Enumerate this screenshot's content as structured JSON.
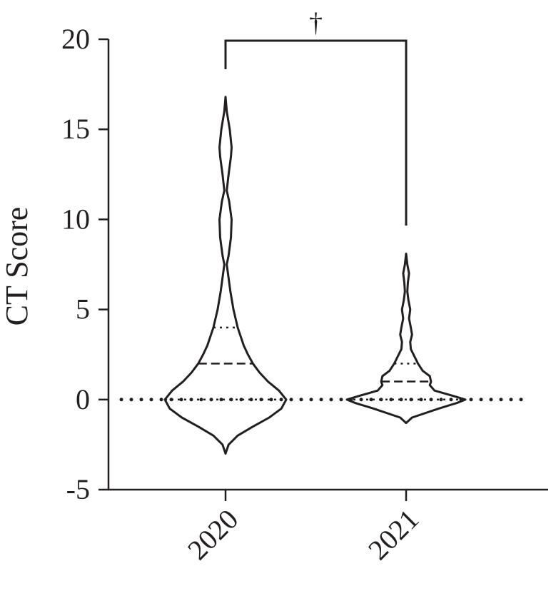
{
  "chart_data": {
    "type": "violin",
    "title": "",
    "xlabel": "",
    "ylabel": "CT Score",
    "ylim": [
      -5,
      20
    ],
    "yticks": [
      "-5",
      "0",
      "5",
      "10",
      "15",
      "20"
    ],
    "categories": [
      "2020",
      "2021"
    ],
    "grid": false,
    "legend": "none",
    "reference_line_y": 0,
    "significance": {
      "between": [
        "2020",
        "2021"
      ],
      "label": "†"
    },
    "series": [
      {
        "category": "2020",
        "min": -3,
        "max": 16.8,
        "median": 2,
        "q1": 0,
        "q3": 4,
        "density_profile": [
          [
            -3.0,
            0.0
          ],
          [
            -2.5,
            0.05
          ],
          [
            -2.0,
            0.2
          ],
          [
            -1.5,
            0.45
          ],
          [
            -1.0,
            0.72
          ],
          [
            -0.5,
            0.92
          ],
          [
            0.0,
            1.0
          ],
          [
            0.5,
            0.88
          ],
          [
            1.0,
            0.7
          ],
          [
            1.5,
            0.56
          ],
          [
            2.0,
            0.45
          ],
          [
            2.5,
            0.37
          ],
          [
            3.0,
            0.3
          ],
          [
            4.0,
            0.2
          ],
          [
            5.0,
            0.13
          ],
          [
            6.0,
            0.08
          ],
          [
            7.0,
            0.04
          ],
          [
            7.5,
            0.02
          ],
          [
            8.0,
            0.05
          ],
          [
            9.0,
            0.09
          ],
          [
            10.0,
            0.1
          ],
          [
            11.0,
            0.06
          ],
          [
            11.6,
            0.02
          ],
          [
            12.5,
            0.05
          ],
          [
            13.5,
            0.09
          ],
          [
            14.0,
            0.1
          ],
          [
            15.0,
            0.07
          ],
          [
            16.0,
            0.02
          ],
          [
            16.8,
            0.0
          ]
        ]
      },
      {
        "category": "2021",
        "min": -1.3,
        "max": 8.1,
        "median": 1,
        "q1": 0,
        "q3": 2,
        "density_profile": [
          [
            -1.3,
            0.0
          ],
          [
            -1.0,
            0.1
          ],
          [
            -0.5,
            0.55
          ],
          [
            -0.2,
            0.85
          ],
          [
            0.0,
            1.0
          ],
          [
            0.2,
            0.8
          ],
          [
            0.5,
            0.48
          ],
          [
            0.8,
            0.4
          ],
          [
            1.0,
            0.42
          ],
          [
            1.3,
            0.4
          ],
          [
            1.6,
            0.28
          ],
          [
            2.0,
            0.2
          ],
          [
            2.4,
            0.14
          ],
          [
            2.8,
            0.08
          ],
          [
            3.2,
            0.07
          ],
          [
            3.6,
            0.1
          ],
          [
            4.0,
            0.08
          ],
          [
            4.5,
            0.05
          ],
          [
            5.0,
            0.07
          ],
          [
            5.5,
            0.04
          ],
          [
            6.0,
            0.02
          ],
          [
            6.5,
            0.03
          ],
          [
            7.0,
            0.05
          ],
          [
            7.5,
            0.02
          ],
          [
            8.1,
            0.0
          ]
        ]
      }
    ]
  }
}
